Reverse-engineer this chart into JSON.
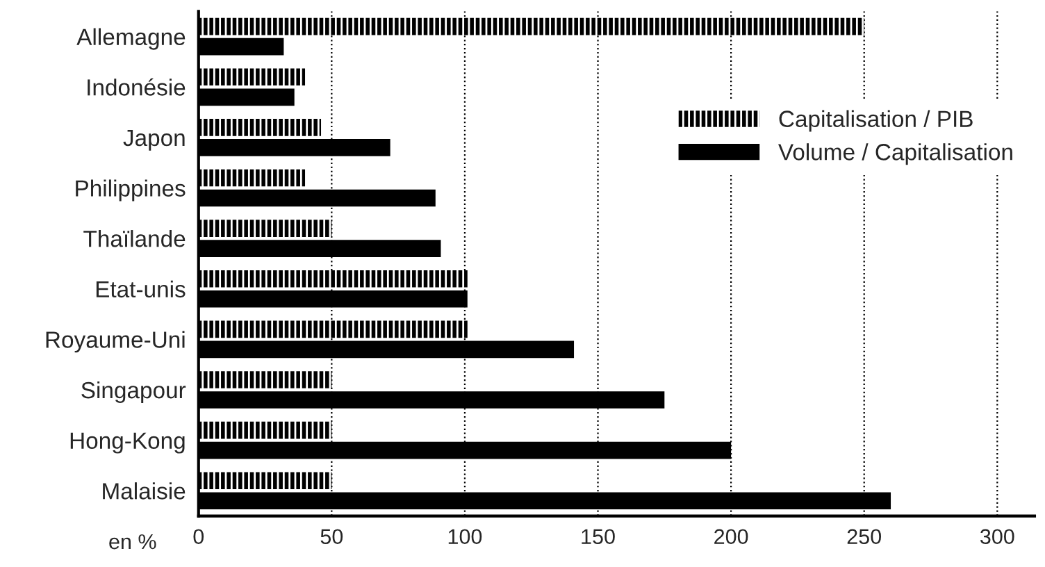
{
  "chart_data": {
    "type": "bar",
    "orientation": "horizontal",
    "xlabel": "en %",
    "categories": [
      "Allemagne",
      "Indonésie",
      "Japon",
      "Philippines",
      "Thaïlande",
      "Etat-unis",
      "Royaume-Uni",
      "Singapour",
      "Hong-Kong",
      "Malaisie"
    ],
    "series": [
      {
        "name": "Capitalisation / PIB",
        "color": "#000000",
        "values": [
          250,
          40,
          46,
          40,
          50,
          101,
          101,
          50,
          50,
          50
        ]
      },
      {
        "name": "Volume / Capitalisation",
        "color": "#000000",
        "values": [
          32,
          36,
          72,
          89,
          91,
          101,
          141,
          175,
          200,
          260
        ]
      }
    ],
    "xlim": [
      0,
      314
    ],
    "xticks": [
      0,
      50,
      100,
      150,
      200,
      250,
      300
    ],
    "grid": "x",
    "legend": "right"
  }
}
